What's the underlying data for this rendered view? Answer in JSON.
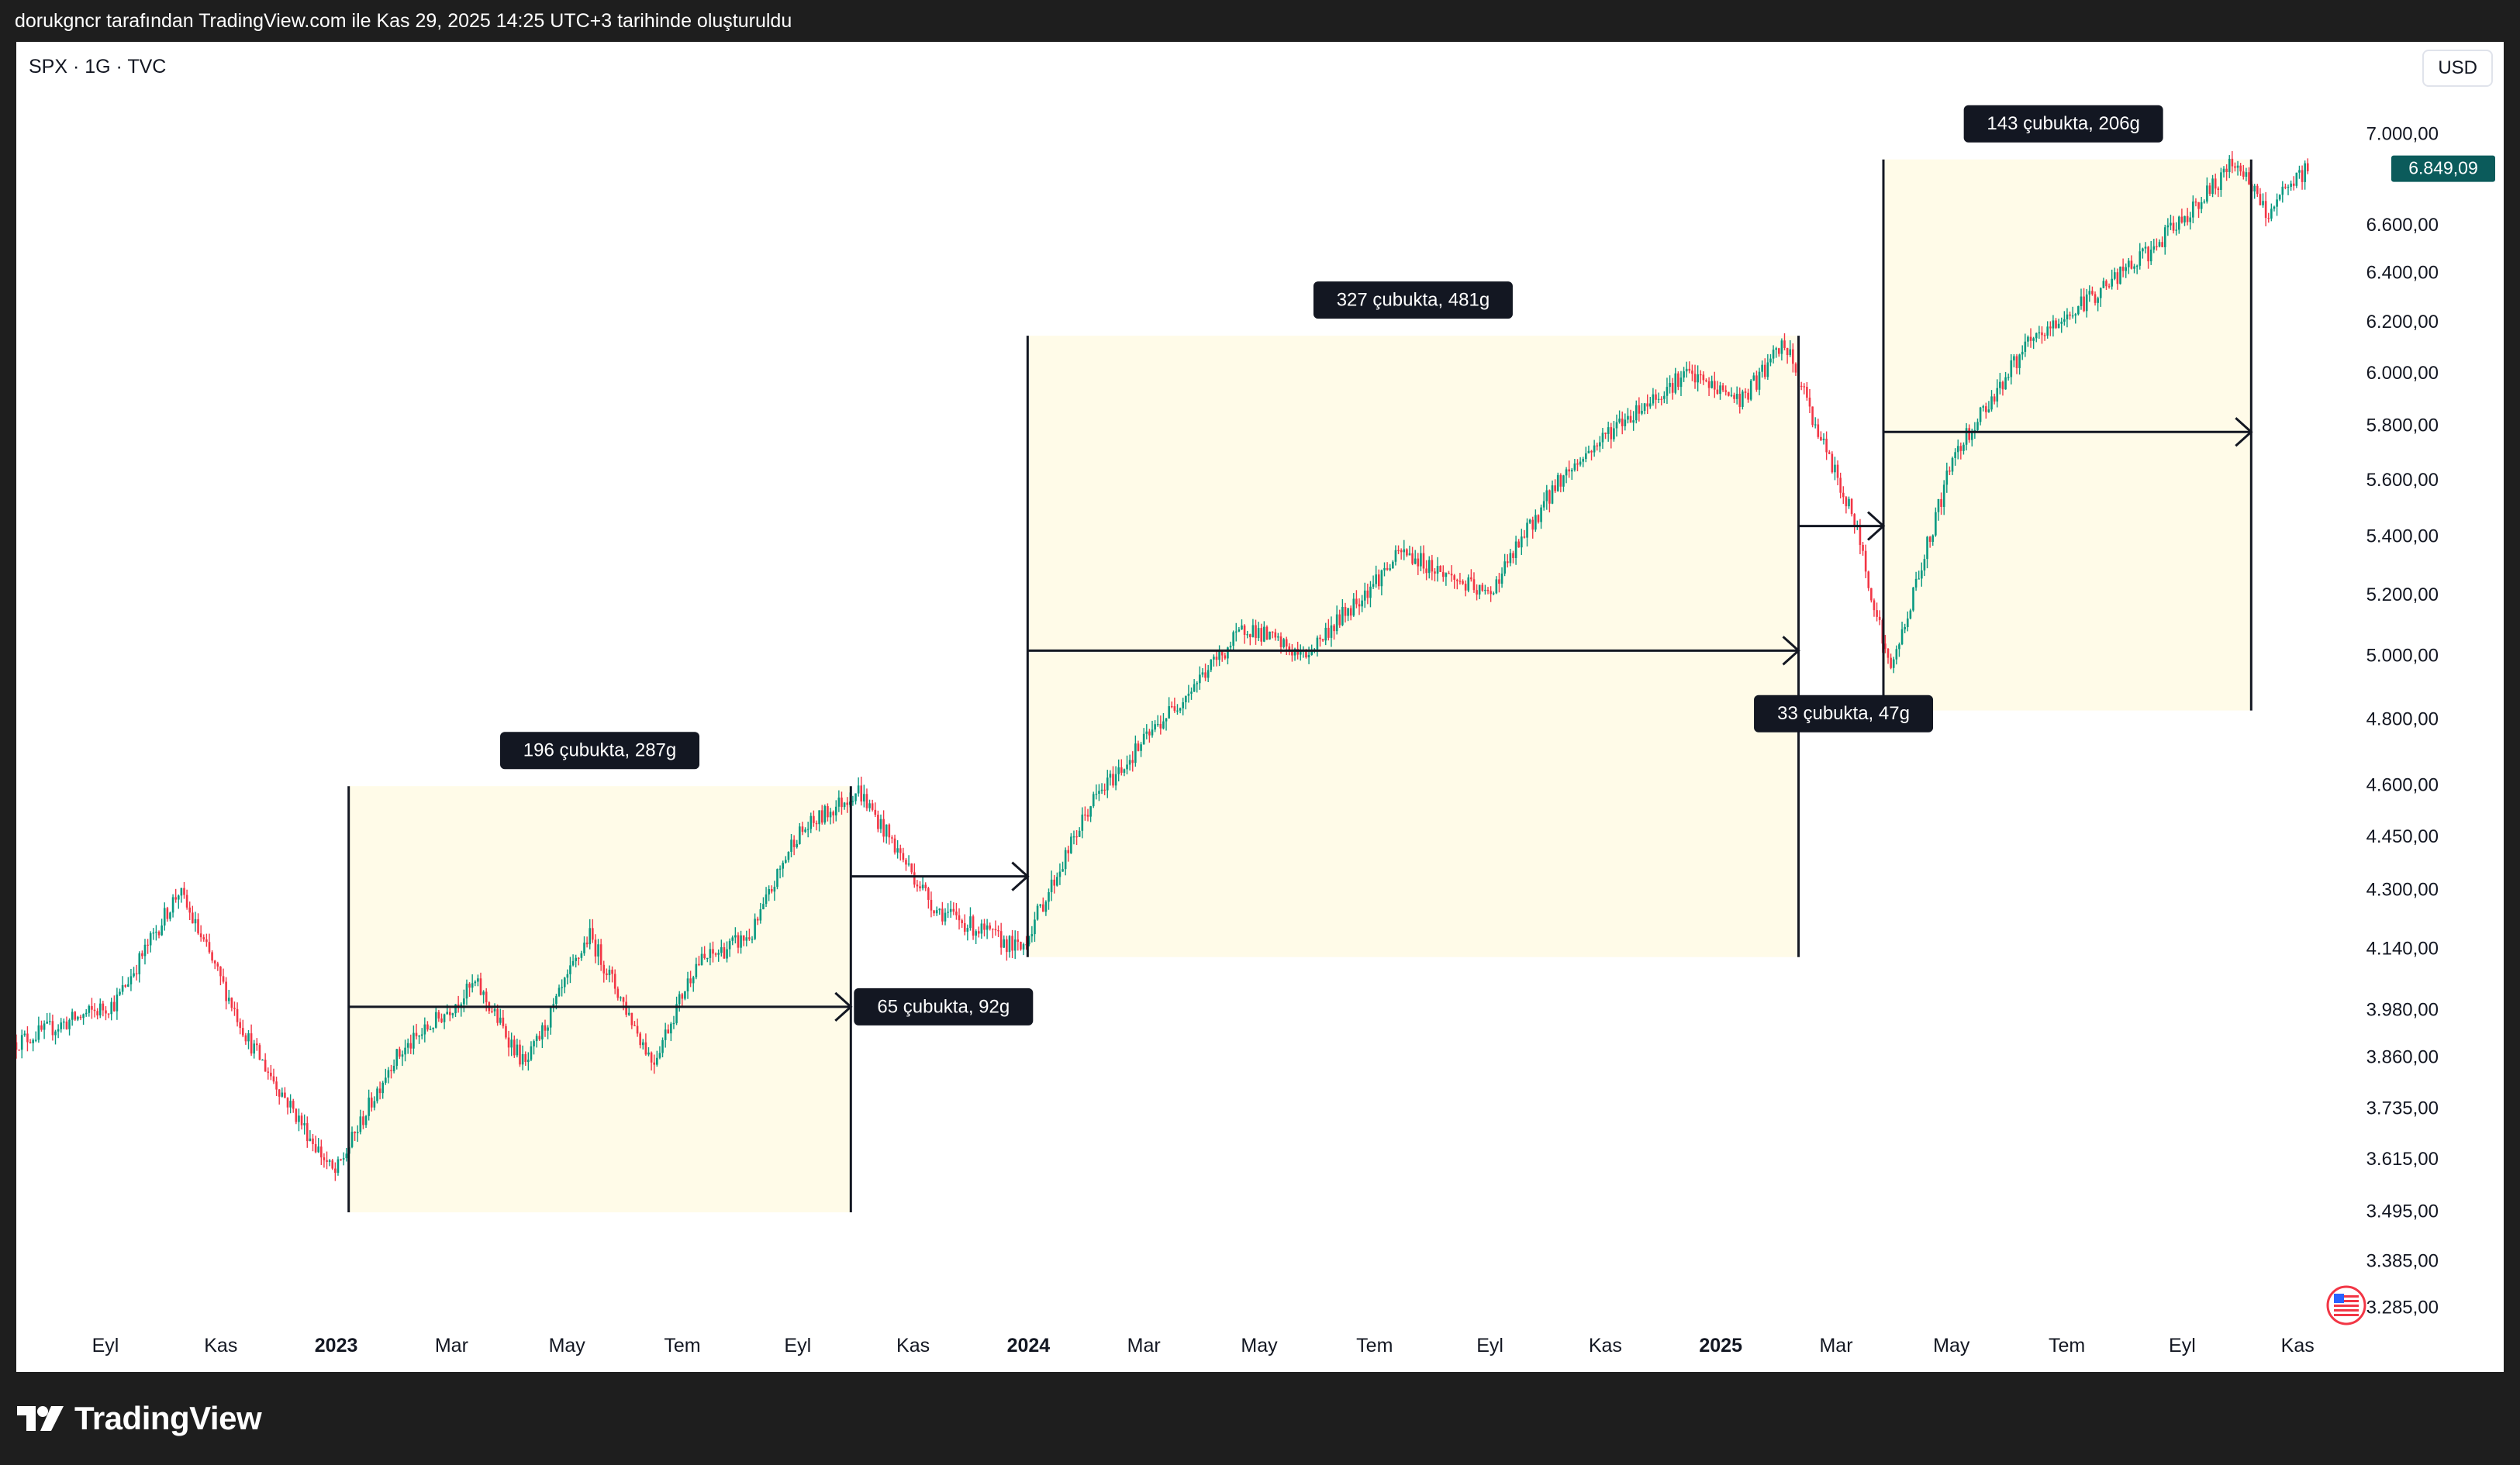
{
  "topbar": {
    "caption": "dorukgncr tarafından TradingView.com ile Kas 29, 2025 14:25 UTC+3 tarihinde oluşturuldu"
  },
  "chart_header": {
    "symbol": "SPX · 1G · TVC",
    "currency": "USD"
  },
  "footer": {
    "brand": "TradingView",
    "flag_icon": "us-flag-icon"
  },
  "chart_data": {
    "type": "candlestick",
    "title": "SPX · 1G · TVC",
    "x_ticks": [
      {
        "label": "Eyl",
        "bold": false
      },
      {
        "label": "Kas",
        "bold": false
      },
      {
        "label": "2023",
        "bold": true
      },
      {
        "label": "Mar",
        "bold": false
      },
      {
        "label": "May",
        "bold": false
      },
      {
        "label": "Tem",
        "bold": false
      },
      {
        "label": "Eyl",
        "bold": false
      },
      {
        "label": "Kas",
        "bold": false
      },
      {
        "label": "2024",
        "bold": true
      },
      {
        "label": "Mar",
        "bold": false
      },
      {
        "label": "May",
        "bold": false
      },
      {
        "label": "Tem",
        "bold": false
      },
      {
        "label": "Eyl",
        "bold": false
      },
      {
        "label": "Kas",
        "bold": false
      },
      {
        "label": "2025",
        "bold": true
      },
      {
        "label": "Mar",
        "bold": false
      },
      {
        "label": "May",
        "bold": false
      },
      {
        "label": "Tem",
        "bold": false
      },
      {
        "label": "Eyl",
        "bold": false
      },
      {
        "label": "Kas",
        "bold": false
      }
    ],
    "y_ticks": [
      {
        "label": "7.000,00",
        "value": 7000
      },
      {
        "label": "6.600,00",
        "value": 6600
      },
      {
        "label": "6.400,00",
        "value": 6400
      },
      {
        "label": "6.200,00",
        "value": 6200
      },
      {
        "label": "6.000,00",
        "value": 6000
      },
      {
        "label": "5.800,00",
        "value": 5800
      },
      {
        "label": "5.600,00",
        "value": 5600
      },
      {
        "label": "5.400,00",
        "value": 5400
      },
      {
        "label": "5.200,00",
        "value": 5200
      },
      {
        "label": "5.000,00",
        "value": 5000
      },
      {
        "label": "4.800,00",
        "value": 4800
      },
      {
        "label": "4.600,00",
        "value": 4600
      },
      {
        "label": "4.450,00",
        "value": 4450
      },
      {
        "label": "4.300,00",
        "value": 4300
      },
      {
        "label": "4.140,00",
        "value": 4140
      },
      {
        "label": "3.980,00",
        "value": 3980
      },
      {
        "label": "3.860,00",
        "value": 3860
      },
      {
        "label": "3.735,00",
        "value": 3735
      },
      {
        "label": "3.615,00",
        "value": 3615
      },
      {
        "label": "3.495,00",
        "value": 3495
      },
      {
        "label": "3.385,00",
        "value": 3385
      },
      {
        "label": "3.285,00",
        "value": 3285
      }
    ],
    "y_scale": "log",
    "last_price": {
      "label": "6.849,09",
      "value": 6849.09,
      "color": "#0b5b5b"
    },
    "candle_colors": {
      "up": "#089981",
      "down": "#f23645"
    },
    "price_path": [
      {
        "t": 0,
        "p": 3900
      },
      {
        "t": 1.4,
        "p": 4000
      },
      {
        "t": 2.3,
        "p": 4300
      },
      {
        "t": 3.3,
        "p": 3900
      },
      {
        "t": 4.5,
        "p": 3580
      },
      {
        "t": 5.3,
        "p": 3850
      },
      {
        "t": 6.5,
        "p": 4050
      },
      {
        "t": 7.2,
        "p": 3840
      },
      {
        "t": 8.1,
        "p": 4180
      },
      {
        "t": 9.0,
        "p": 3850
      },
      {
        "t": 9.6,
        "p": 4100
      },
      {
        "t": 10.4,
        "p": 4180
      },
      {
        "t": 11.0,
        "p": 4450
      },
      {
        "t": 11.9,
        "p": 4590
      },
      {
        "t": 13.0,
        "p": 4250
      },
      {
        "t": 14.2,
        "p": 4140
      },
      {
        "t": 15.2,
        "p": 4550
      },
      {
        "t": 16.2,
        "p": 4800
      },
      {
        "t": 17.4,
        "p": 5100
      },
      {
        "t": 18.2,
        "p": 5000
      },
      {
        "t": 19.6,
        "p": 5350
      },
      {
        "t": 20.8,
        "p": 5200
      },
      {
        "t": 21.8,
        "p": 5600
      },
      {
        "t": 22.6,
        "p": 5800
      },
      {
        "t": 23.6,
        "p": 6000
      },
      {
        "t": 24.4,
        "p": 5900
      },
      {
        "t": 25.0,
        "p": 6120
      },
      {
        "t": 25.6,
        "p": 5700
      },
      {
        "t": 26.0,
        "p": 5450
      },
      {
        "t": 26.5,
        "p": 4950
      },
      {
        "t": 27.4,
        "p": 5700
      },
      {
        "t": 28.4,
        "p": 6100
      },
      {
        "t": 30.2,
        "p": 6500
      },
      {
        "t": 31.0,
        "p": 6750
      },
      {
        "t": 31.4,
        "p": 6890
      },
      {
        "t": 31.8,
        "p": 6650
      },
      {
        "t": 32.4,
        "p": 6849
      }
    ],
    "range_boxes": [
      {
        "from_t": 4.7,
        "to_t": 11.8,
        "low": 3495,
        "high": 4600,
        "label": "196 çubukta, 287g",
        "label_at": "top"
      },
      {
        "from_t": 14.3,
        "to_t": 25.2,
        "low": 4120,
        "high": 6150,
        "label": "327 çubukta, 481g",
        "label_at": "top"
      },
      {
        "from_t": 26.4,
        "to_t": 31.6,
        "low": 4830,
        "high": 6890,
        "label": "143 çubukta, 206g",
        "label_at": "top"
      }
    ],
    "arrows": [
      {
        "from_t": 4.7,
        "to_t": 11.8,
        "price": 3990,
        "label": "65 çubukta, 92g",
        "label_at": "end-below"
      },
      {
        "from_t": 11.8,
        "to_t": 14.3,
        "price": 4340
      },
      {
        "from_t": 14.3,
        "to_t": 25.2,
        "price": 5020
      },
      {
        "from_t": 25.2,
        "to_t": 26.4,
        "price": 5440,
        "label": "33 çubukta, 47g",
        "label_at": "box-below"
      },
      {
        "from_t": 26.4,
        "to_t": 31.6,
        "price": 5780
      }
    ],
    "grid": false,
    "legend": "none"
  }
}
